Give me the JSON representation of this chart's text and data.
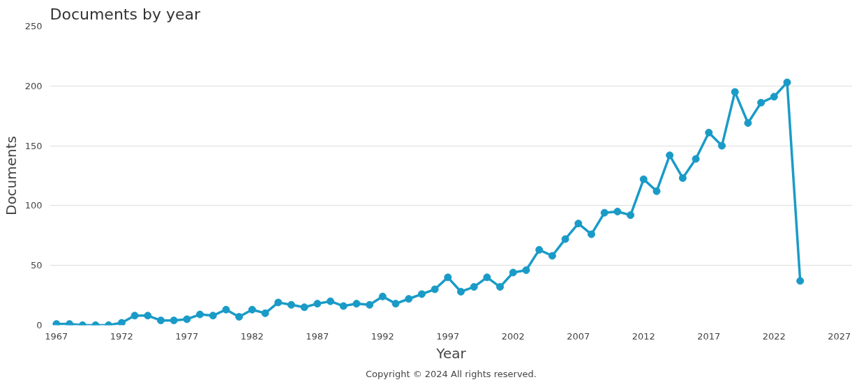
{
  "chart_data": {
    "type": "line",
    "title": "Documents by year",
    "xlabel": "Year",
    "ylabel": "Documents",
    "x": [
      1967,
      1968,
      1969,
      1970,
      1971,
      1972,
      1973,
      1974,
      1975,
      1976,
      1977,
      1978,
      1979,
      1980,
      1981,
      1982,
      1983,
      1984,
      1985,
      1986,
      1987,
      1988,
      1989,
      1990,
      1991,
      1992,
      1993,
      1994,
      1995,
      1996,
      1997,
      1998,
      1999,
      2000,
      2001,
      2002,
      2003,
      2004,
      2005,
      2006,
      2007,
      2008,
      2009,
      2010,
      2011,
      2012,
      2013,
      2014,
      2015,
      2016,
      2017,
      2018,
      2019,
      2020,
      2021,
      2022,
      2023,
      2024
    ],
    "series": [
      {
        "color": "#1a9bc7",
        "values": [
          1,
          1,
          0,
          0,
          0,
          2,
          8,
          8,
          4,
          4,
          5,
          9,
          8,
          13,
          7,
          13,
          10,
          19,
          17,
          15,
          18,
          20,
          16,
          18,
          17,
          24,
          18,
          22,
          26,
          30,
          40,
          28,
          32,
          40,
          32,
          44,
          46,
          63,
          58,
          72,
          85,
          76,
          94,
          95,
          92,
          122,
          112,
          142,
          123,
          139,
          161,
          150,
          195,
          169,
          186,
          191,
          203,
          37
        ]
      }
    ],
    "xlim": [
      1966.5,
      2028
    ],
    "xticks": [
      1967,
      1972,
      1977,
      1982,
      1987,
      1992,
      1997,
      2002,
      2007,
      2012,
      2017,
      2022,
      2027
    ],
    "ylim": [
      0,
      250
    ],
    "yticks": [
      0,
      50,
      100,
      150,
      200,
      250
    ],
    "grid": "y",
    "marker": "circle",
    "line_style": "solid",
    "annotations": [
      "Copyright © 2024 All rights reserved."
    ]
  }
}
